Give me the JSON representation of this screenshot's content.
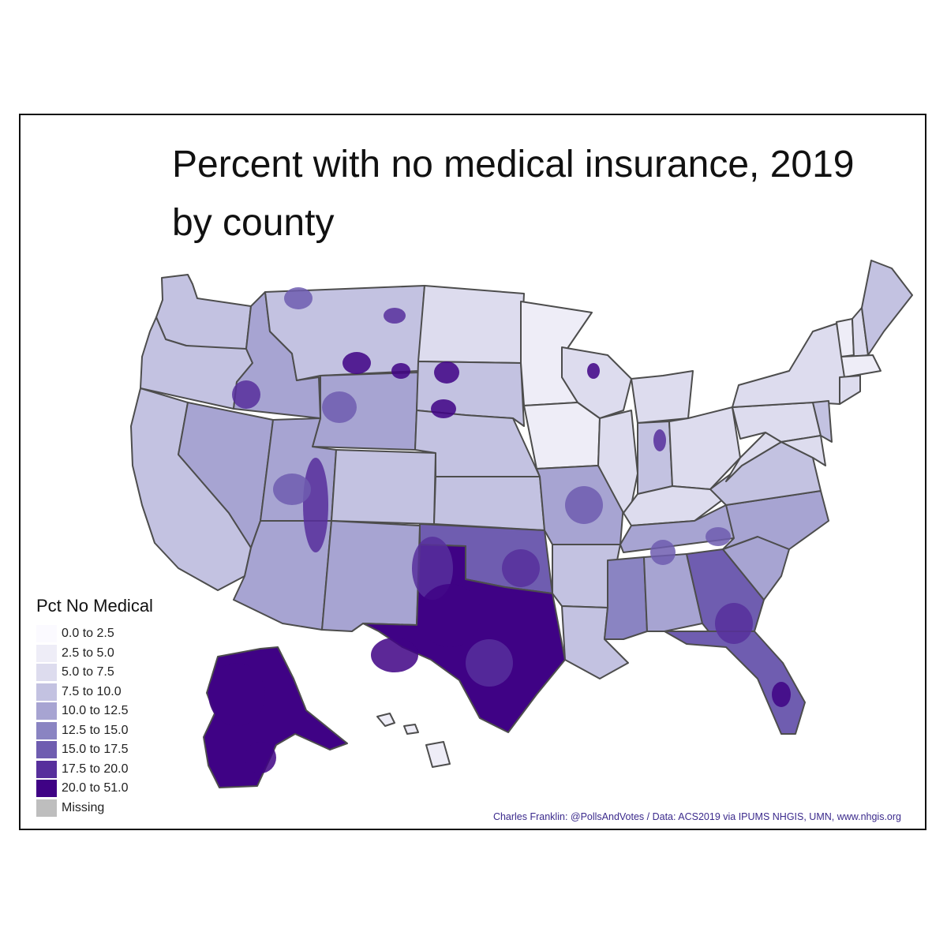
{
  "title": {
    "line1": "Percent with no medical insurance, 2019",
    "line2": "by county"
  },
  "legend": {
    "title": "Pct No Medical",
    "items": [
      {
        "label": "0.0 to 2.5",
        "color": "#fbfaff"
      },
      {
        "label": "2.5 to 5.0",
        "color": "#eeedf7"
      },
      {
        "label": "5.0 to 7.5",
        "color": "#dddcee"
      },
      {
        "label": "7.5 to 10.0",
        "color": "#c3c2e1"
      },
      {
        "label": "10.0 to 12.5",
        "color": "#a7a4d2"
      },
      {
        "label": "12.5 to 15.0",
        "color": "#8a84c2"
      },
      {
        "label": "15.0 to 17.5",
        "color": "#6f5db0"
      },
      {
        "label": "17.5 to 20.0",
        "color": "#572f9c"
      },
      {
        "label": "20.0 to 51.0",
        "color": "#3f0285"
      },
      {
        "label": "Missing",
        "color": "#bebebe"
      }
    ]
  },
  "credit": "Charles Franklin: @PollsAndVotes / Data: ACS2019 via IPUMS NHGIS, UMN, www.nhgis.org",
  "map": {
    "border_color": "#4d4d4d",
    "regions": [
      {
        "name": "Washington",
        "class": 3
      },
      {
        "name": "Oregon",
        "class": 3
      },
      {
        "name": "California",
        "class": 3
      },
      {
        "name": "Nevada",
        "class": 4
      },
      {
        "name": "Idaho",
        "class": 4
      },
      {
        "name": "Montana",
        "class": 3
      },
      {
        "name": "Wyoming",
        "class": 4
      },
      {
        "name": "Utah",
        "class": 4
      },
      {
        "name": "Arizona",
        "class": 4
      },
      {
        "name": "Colorado",
        "class": 3
      },
      {
        "name": "New Mexico",
        "class": 4
      },
      {
        "name": "North Dakota",
        "class": 2
      },
      {
        "name": "South Dakota",
        "class": 3
      },
      {
        "name": "Nebraska",
        "class": 3
      },
      {
        "name": "Kansas",
        "class": 3
      },
      {
        "name": "Oklahoma",
        "class": 6
      },
      {
        "name": "Texas",
        "class": 8
      },
      {
        "name": "Minnesota",
        "class": 1
      },
      {
        "name": "Iowa",
        "class": 1
      },
      {
        "name": "Missouri",
        "class": 4
      },
      {
        "name": "Arkansas",
        "class": 3
      },
      {
        "name": "Louisiana",
        "class": 3
      },
      {
        "name": "Wisconsin",
        "class": 2
      },
      {
        "name": "Illinois",
        "class": 2
      },
      {
        "name": "Michigan",
        "class": 2
      },
      {
        "name": "Indiana",
        "class": 3
      },
      {
        "name": "Ohio",
        "class": 2
      },
      {
        "name": "Kentucky",
        "class": 2
      },
      {
        "name": "Tennessee",
        "class": 4
      },
      {
        "name": "Mississippi",
        "class": 5
      },
      {
        "name": "Alabama",
        "class": 4
      },
      {
        "name": "Georgia",
        "class": 6
      },
      {
        "name": "Florida",
        "class": 6
      },
      {
        "name": "South Carolina",
        "class": 4
      },
      {
        "name": "North Carolina",
        "class": 4
      },
      {
        "name": "Virginia",
        "class": 3
      },
      {
        "name": "West Virginia",
        "class": 2
      },
      {
        "name": "Pennsylvania",
        "class": 2
      },
      {
        "name": "New York",
        "class": 2
      },
      {
        "name": "Vermont",
        "class": 1
      },
      {
        "name": "New Hampshire",
        "class": 2
      },
      {
        "name": "Maine",
        "class": 3
      },
      {
        "name": "Massachusetts",
        "class": 1
      },
      {
        "name": "Connecticut",
        "class": 2
      },
      {
        "name": "New Jersey",
        "class": 3
      },
      {
        "name": "Maryland",
        "class": 2
      },
      {
        "name": "Alaska",
        "class": 8
      },
      {
        "name": "Hawaii",
        "class": 1
      }
    ]
  }
}
